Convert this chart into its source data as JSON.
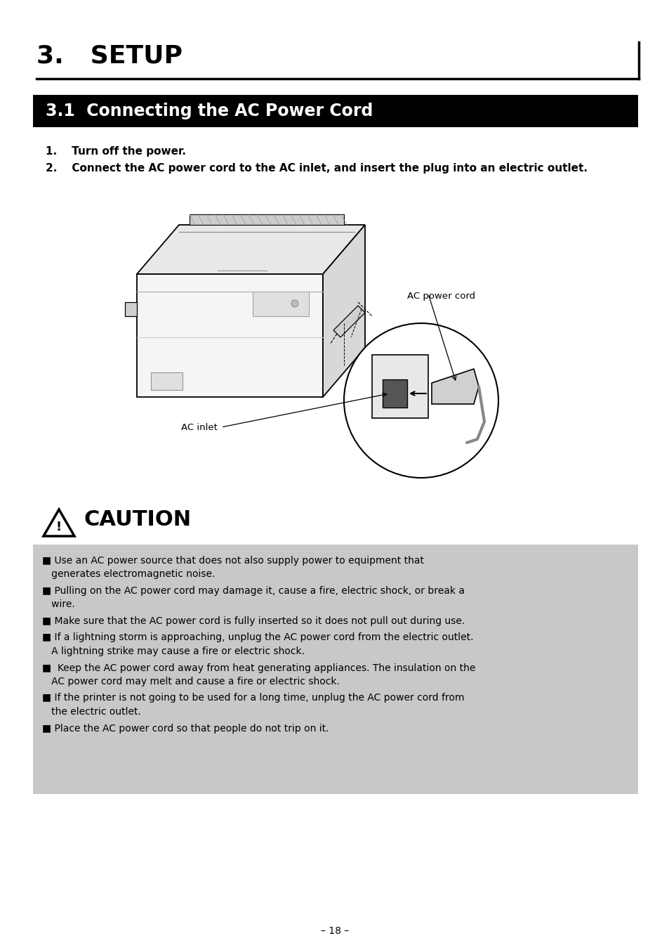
{
  "bg_color": "#ffffff",
  "title_main": "3.   SETUP",
  "title_main_fontsize": 26,
  "section_header_text": "3.1  Connecting the AC Power Cord",
  "section_header_fontsize": 17,
  "section_header_bg": "#000000",
  "section_header_text_color": "#ffffff",
  "step1_text": "1.    Turn off the power.",
  "step2_text": "2.    Connect the AC power cord to the AC inlet, and insert the plug into an electric outlet.",
  "steps_fontsize": 11,
  "caution_title": "CAUTION",
  "caution_title_fontsize": 22,
  "caution_bg": "#c8c8c8",
  "caution_items": [
    [
      "■ Use an AC power source that does not also supply power to equipment that",
      "   generates electromagnetic noise."
    ],
    [
      "■ Pulling on the AC power cord may damage it, cause a fire, electric shock, or break a",
      "   wire."
    ],
    [
      "■ Make sure that the AC power cord is fully inserted so it does not pull out during use."
    ],
    [
      "■ If a lightning storm is approaching, unplug the AC power cord from the electric outlet.",
      "   A lightning strike may cause a fire or electric shock."
    ],
    [
      "■  Keep the AC power cord away from heat generating appliances. The insulation on the",
      "   AC power cord may melt and cause a fire or electric shock."
    ],
    [
      "■ If the printer is not going to be used for a long time, unplug the AC power cord from",
      "   the electric outlet."
    ],
    [
      "■ Place the AC power cord so that people do not trip on it."
    ]
  ],
  "caution_fontsize": 10,
  "page_number": "– 18 –",
  "footer_fontsize": 10,
  "ac_power_cord_label": "AC power cord",
  "ac_inlet_label": "AC inlet"
}
